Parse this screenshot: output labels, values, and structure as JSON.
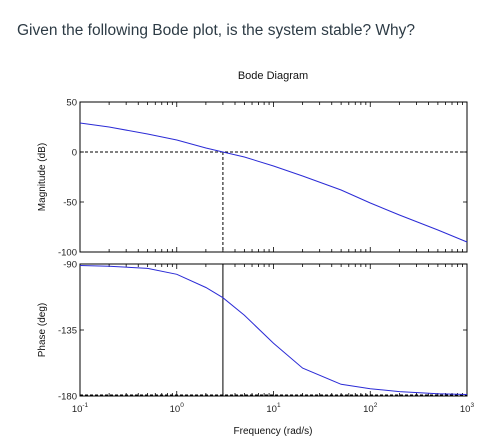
{
  "question": "Given the following Bode plot, is the system stable? Why?",
  "chart_data": {
    "type": "line",
    "title": "Bode Diagram",
    "xlabel": "Frequency   (rad/s)",
    "x_scale": "log",
    "xlim": [
      0.1,
      1000
    ],
    "x_ticks": [
      {
        "base": "10",
        "exp": "-1"
      },
      {
        "base": "10",
        "exp": "0"
      },
      {
        "base": "10",
        "exp": "1"
      },
      {
        "base": "10",
        "exp": "2"
      },
      {
        "base": "10",
        "exp": "3"
      }
    ],
    "magnitude": {
      "ylabel": "Magnitude (dB)",
      "ylim": [
        -100,
        50
      ],
      "y_ticks": [
        "50",
        "0",
        "-50",
        "-100"
      ],
      "x": [
        0.1,
        0.2,
        0.5,
        1,
        2,
        3,
        5,
        10,
        20,
        50,
        100,
        200,
        500,
        1000
      ],
      "y": [
        29,
        25,
        18,
        12,
        4,
        0,
        -5,
        -14,
        -24,
        -38,
        -51,
        -63,
        -78,
        -90
      ],
      "crossover_frequency": 3,
      "reference_level": 0,
      "color": "#2b2bd6"
    },
    "phase": {
      "ylabel": "Phase (deg)",
      "ylim": [
        -180,
        -90
      ],
      "y_ticks": [
        "-90",
        "-135",
        "-180"
      ],
      "x": [
        0.1,
        0.2,
        0.5,
        1,
        2,
        3,
        5,
        10,
        20,
        50,
        100,
        200,
        500,
        1000
      ],
      "y": [
        -91,
        -91.5,
        -93,
        -97,
        -106,
        -113,
        -125,
        -144,
        -161,
        -172,
        -175,
        -177,
        -178.5,
        -179
      ],
      "reference_level": -180,
      "color": "#2b2bd6"
    }
  }
}
